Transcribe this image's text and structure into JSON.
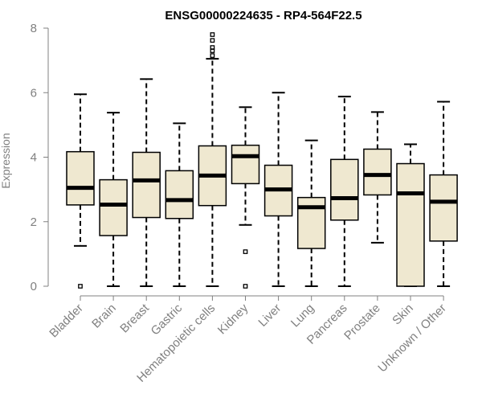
{
  "chart_data": {
    "type": "boxplot",
    "title": "ENSG00000224635 - RP4-564F22.5",
    "ylabel": "Expression",
    "xlabel": "",
    "ylim": [
      0,
      8
    ],
    "yticks": [
      0,
      2,
      4,
      6,
      8
    ],
    "box_color": "#EFE8D0",
    "categories": [
      "Bladder",
      "Brain",
      "Breast",
      "Gastric",
      "Hematopoietic cells",
      "Kidney",
      "Liver",
      "Lung",
      "Pancreas",
      "Prostate",
      "Skin",
      "Unknown / Other"
    ],
    "boxes": [
      {
        "category": "Bladder",
        "whisker_low": 1.25,
        "q1": 2.52,
        "median": 3.05,
        "q3": 4.17,
        "whisker_high": 5.95,
        "outliers": [
          0.0
        ]
      },
      {
        "category": "Brain",
        "whisker_low": 0.0,
        "q1": 1.57,
        "median": 2.53,
        "q3": 3.3,
        "whisker_high": 5.38,
        "outliers": []
      },
      {
        "category": "Breast",
        "whisker_low": 0.0,
        "q1": 2.13,
        "median": 3.28,
        "q3": 4.15,
        "whisker_high": 6.42,
        "outliers": []
      },
      {
        "category": "Gastric",
        "whisker_low": 0.0,
        "q1": 2.1,
        "median": 2.67,
        "q3": 3.58,
        "whisker_high": 5.05,
        "outliers": []
      },
      {
        "category": "Hematopoietic cells",
        "whisker_low": 0.0,
        "q1": 2.5,
        "median": 3.43,
        "q3": 4.35,
        "whisker_high": 7.05,
        "outliers": [
          7.15,
          7.3,
          7.4,
          7.62,
          7.8
        ]
      },
      {
        "category": "Kidney",
        "whisker_low": 1.9,
        "q1": 3.18,
        "median": 4.03,
        "q3": 4.37,
        "whisker_high": 5.55,
        "outliers": [
          1.07,
          0.0
        ]
      },
      {
        "category": "Liver",
        "whisker_low": 0.0,
        "q1": 2.18,
        "median": 3.0,
        "q3": 3.75,
        "whisker_high": 6.0,
        "outliers": []
      },
      {
        "category": "Lung",
        "whisker_low": 0.0,
        "q1": 1.17,
        "median": 2.45,
        "q3": 2.75,
        "whisker_high": 4.52,
        "outliers": []
      },
      {
        "category": "Pancreas",
        "whisker_low": 0.0,
        "q1": 2.05,
        "median": 2.73,
        "q3": 3.93,
        "whisker_high": 5.88,
        "outliers": []
      },
      {
        "category": "Prostate",
        "whisker_low": 1.35,
        "q1": 2.83,
        "median": 3.45,
        "q3": 4.25,
        "whisker_high": 5.4,
        "outliers": []
      },
      {
        "category": "Skin",
        "whisker_low": 0.0,
        "q1": 0.0,
        "median": 2.88,
        "q3": 3.8,
        "whisker_high": 4.4,
        "outliers": []
      },
      {
        "category": "Unknown / Other",
        "whisker_low": 0.0,
        "q1": 1.4,
        "median": 2.62,
        "q3": 3.45,
        "whisker_high": 5.72,
        "outliers": []
      }
    ]
  }
}
